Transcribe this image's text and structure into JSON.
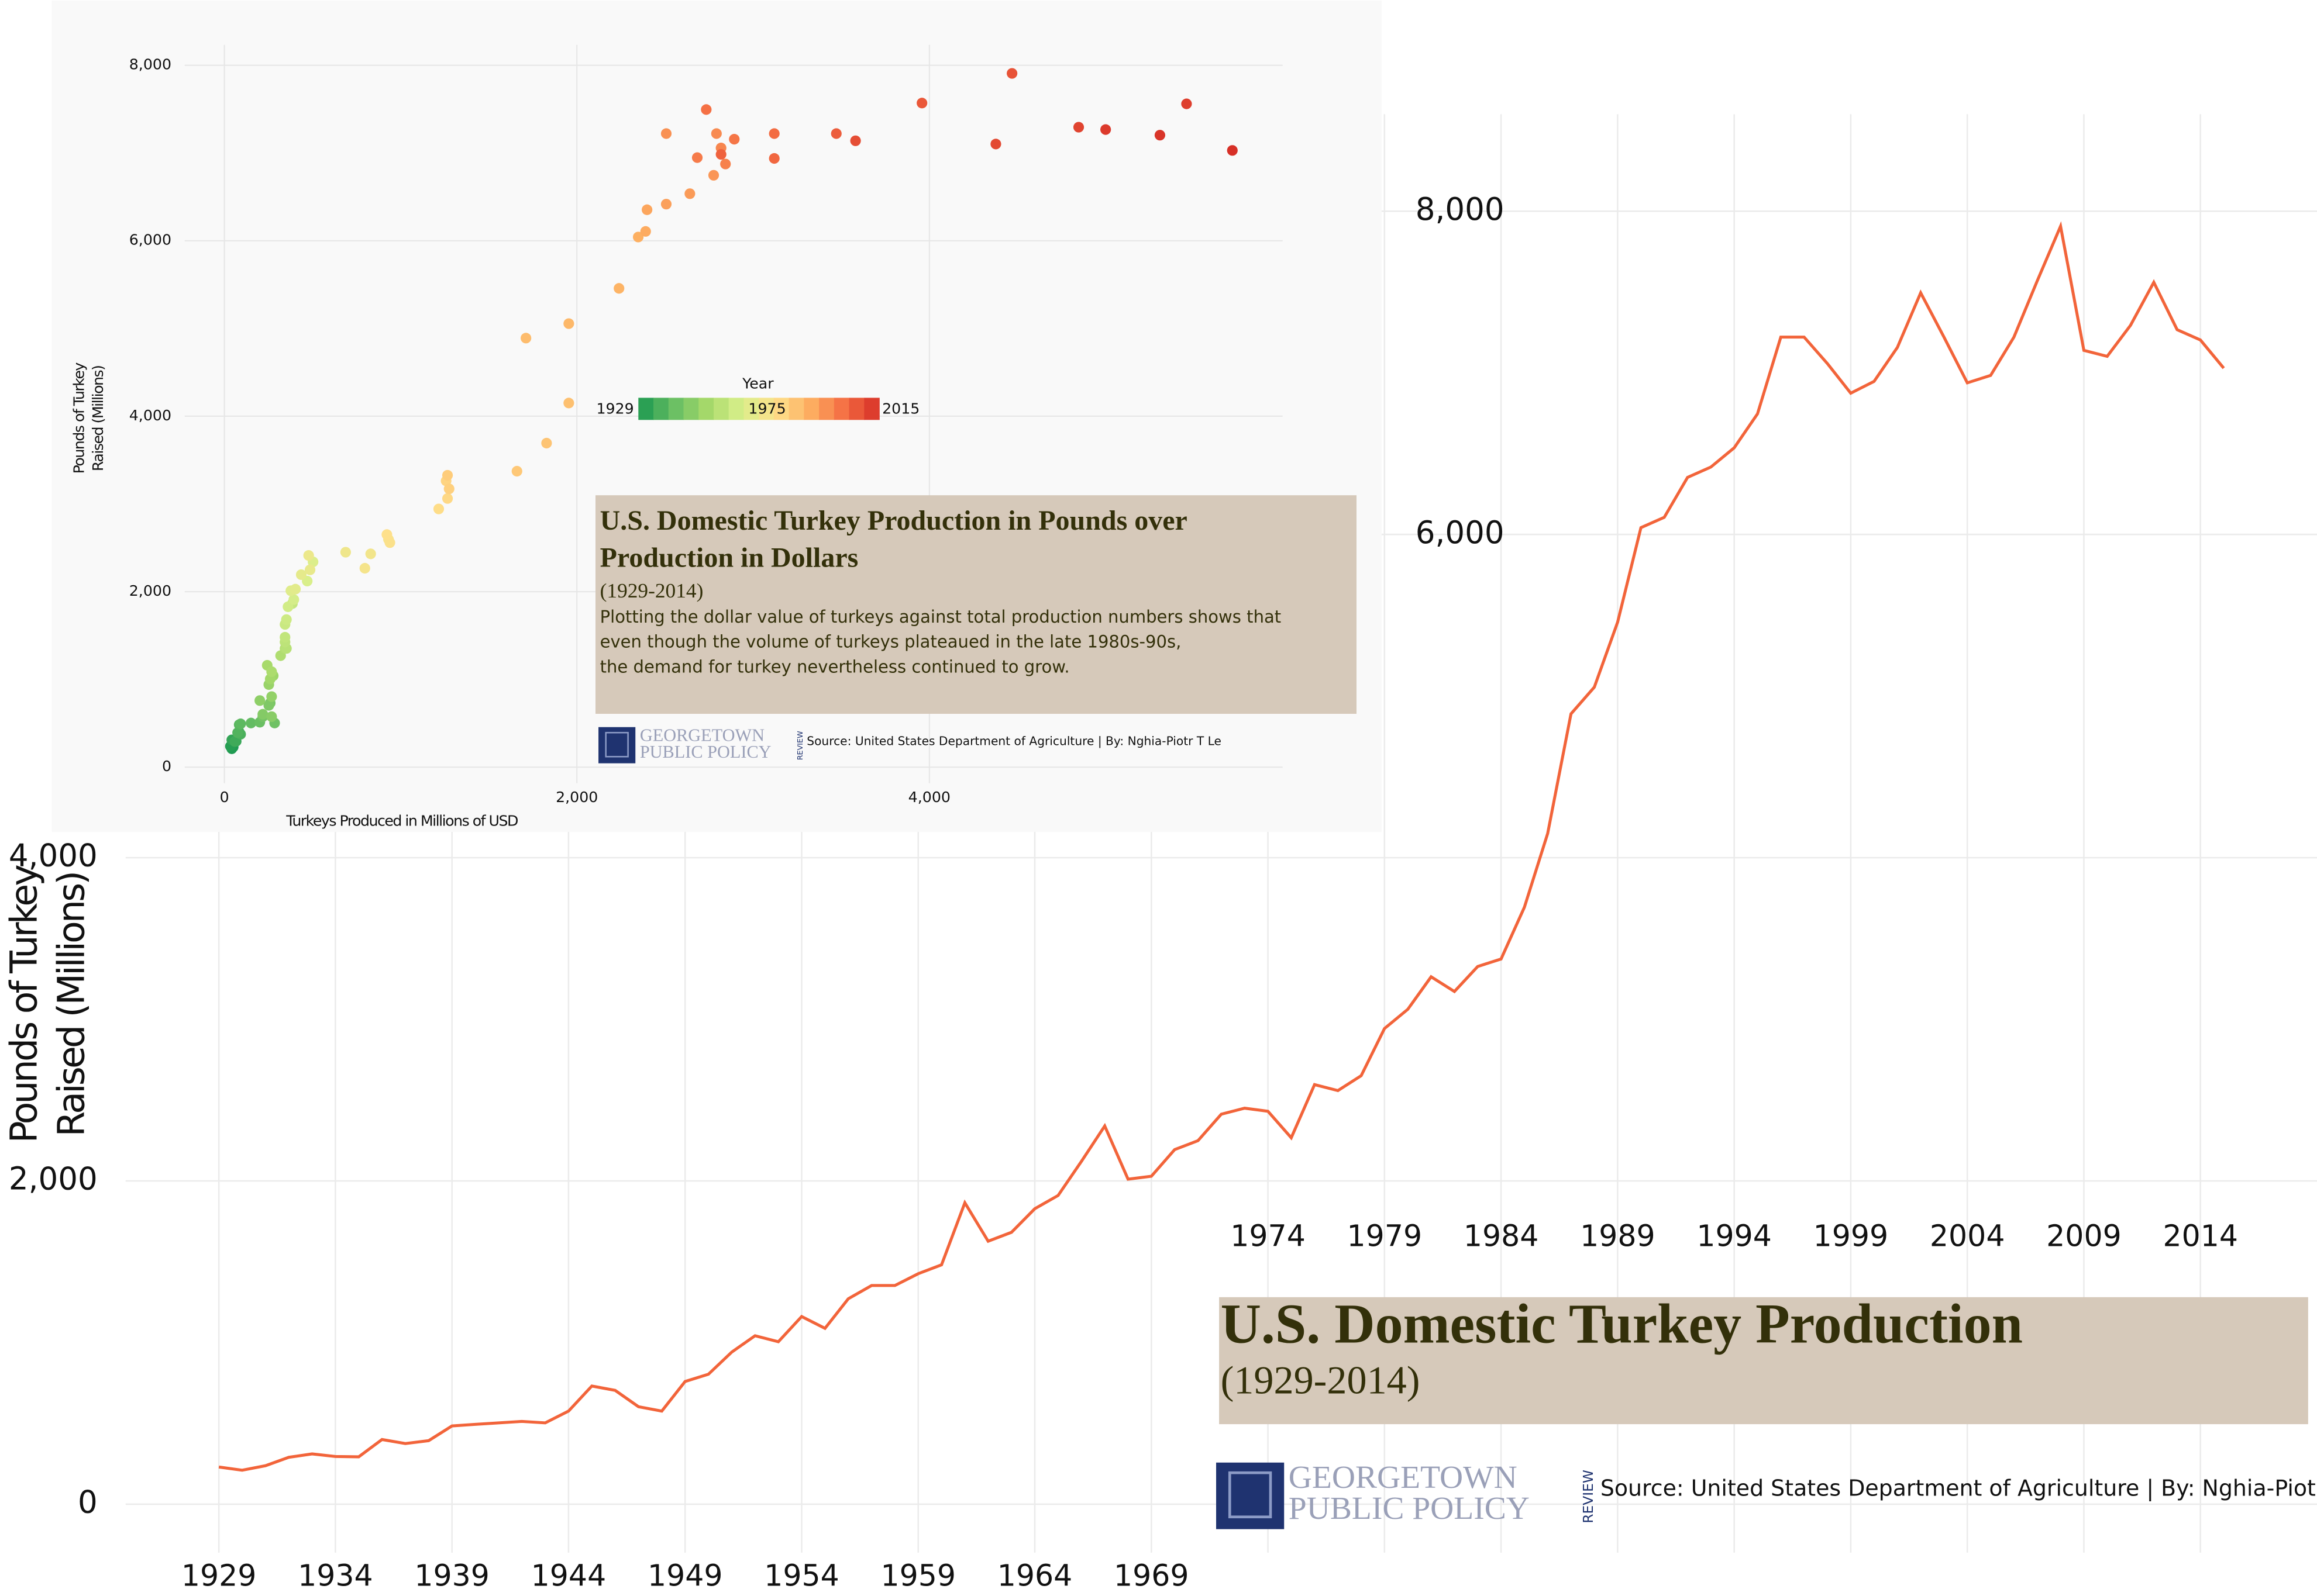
{
  "chart_data": [
    {
      "type": "line",
      "title": "U.S. Domestic Turkey Production",
      "subtitle": "(1929-2014)",
      "ylabel_lines": [
        "Pounds of Turkey",
        "Raised  (Millions)"
      ],
      "x": [
        1929,
        1930,
        1931,
        1932,
        1933,
        1934,
        1935,
        1936,
        1937,
        1938,
        1939,
        1940,
        1941,
        1942,
        1943,
        1944,
        1945,
        1946,
        1947,
        1948,
        1949,
        1950,
        1951,
        1952,
        1953,
        1954,
        1955,
        1956,
        1957,
        1958,
        1959,
        1960,
        1961,
        1962,
        1963,
        1964,
        1965,
        1966,
        1967,
        1968,
        1969,
        1970,
        1971,
        1972,
        1973,
        1974,
        1975,
        1976,
        1977,
        1978,
        1979,
        1980,
        1981,
        1982,
        1983,
        1984,
        1985,
        1986,
        1987,
        1988,
        1989,
        1990,
        1991,
        1992,
        1993,
        1994,
        1995,
        1996,
        1997,
        1998,
        1999,
        2000,
        2001,
        2002,
        2003,
        2004,
        2005,
        2006,
        2007,
        2008,
        2009,
        2010,
        2011,
        2012,
        2013,
        2014,
        2015
      ],
      "values": [
        230,
        210,
        238,
        290,
        311,
        295,
        293,
        400,
        375,
        393,
        484,
        494,
        503,
        512,
        503,
        576,
        731,
        704,
        603,
        576,
        759,
        804,
        941,
        1042,
        1005,
        1161,
        1088,
        1271,
        1353,
        1353,
        1426,
        1481,
        1865,
        1627,
        1682,
        1828,
        1910,
        2121,
        2340,
        2011,
        2029,
        2194,
        2249,
        2413,
        2450,
        2431,
        2267,
        2596,
        2559,
        2651,
        2943,
        3062,
        3263,
        3172,
        3327,
        3373,
        3693,
        4150,
        4890,
        5055,
        5457,
        6042,
        6106,
        6353,
        6417,
        6536,
        6746,
        7221,
        7221,
        7057,
        6874,
        6947,
        7157,
        7495,
        7221,
        6938,
        6984,
        7221,
        7569,
        7907,
        7139,
        7102,
        7294,
        7560,
        7267,
        7203,
        7029
      ],
      "color": "#f2643a",
      "xlim": [
        1925,
        2019
      ],
      "ylim": [
        -300,
        8600
      ],
      "xticks": [
        1929,
        1934,
        1939,
        1944,
        1949,
        1954,
        1959,
        1964,
        1969,
        1974,
        1979,
        1984,
        1989,
        1994,
        1999,
        2004,
        2009,
        2014
      ],
      "yticks": [
        0,
        {
          "value": 2000,
          "label": "2,000"
        },
        {
          "value": 4000,
          "label": "4,000"
        },
        {
          "value": 6000,
          "label": "6,000"
        },
        {
          "value": 8000,
          "label": "8,000"
        }
      ],
      "grid": true,
      "source": "Source: United States Department of Agriculture | By: Nghia-Piotr T Le",
      "logo_lines": [
        "GEORGETOWN",
        "PUBLIC POLICY",
        "REVIEW"
      ]
    },
    {
      "type": "scatter",
      "title_lines": [
        "U.S. Domestic Turkey Production in Pounds over",
        "Production in Dollars"
      ],
      "subtitle": "(1929-2014)",
      "description_lines": [
        "Plotting the dollar value of turkeys against total production numbers shows that",
        "even though the volume of turkeys plateaued in the late 1980s-90s,",
        "the demand for turkey nevertheless continued to grow."
      ],
      "xlabel": "Turkeys Produced in Millions of USD",
      "ylabel_lines": [
        "Pounds of Turkey",
        "Raised  (Millions)"
      ],
      "years": [
        1929,
        1930,
        1931,
        1932,
        1933,
        1934,
        1935,
        1936,
        1937,
        1938,
        1939,
        1940,
        1941,
        1942,
        1943,
        1944,
        1945,
        1946,
        1947,
        1948,
        1949,
        1950,
        1951,
        1952,
        1953,
        1954,
        1955,
        1956,
        1957,
        1958,
        1959,
        1960,
        1961,
        1962,
        1963,
        1964,
        1965,
        1966,
        1967,
        1968,
        1969,
        1970,
        1971,
        1972,
        1973,
        1974,
        1975,
        1976,
        1977,
        1978,
        1979,
        1980,
        1981,
        1982,
        1983,
        1984,
        1985,
        1986,
        1987,
        1988,
        1989,
        1990,
        1991,
        1992,
        1993,
        1994,
        1995,
        1996,
        1997,
        1998,
        1999,
        2000,
        2001,
        2002,
        2003,
        2004,
        2005,
        2006,
        2007,
        2008,
        2009,
        2010,
        2011,
        2012,
        2013,
        2014,
        2015
      ],
      "x": [
        50,
        42,
        34,
        59,
        42,
        67,
        59,
        84,
        92,
        75,
        84,
        92,
        151,
        201,
        285,
        218,
        260,
        252,
        218,
        268,
        201,
        268,
        252,
        277,
        260,
        243,
        268,
        319,
        344,
        352,
        344,
        344,
        386,
        344,
        352,
        361,
        394,
        470,
        503,
        377,
        403,
        436,
        486,
        478,
        688,
        830,
        797,
        931,
        939,
        922,
        1216,
        1266,
        1258,
        1275,
        1266,
        1660,
        1828,
        1954,
        1711,
        1954,
        2239,
        2348,
        2390,
        2398,
        2507,
        2641,
        2776,
        2507,
        2792,
        2818,
        2843,
        2683,
        2893,
        2734,
        3120,
        3120,
        2818,
        3472,
        3958,
        4469,
        3581,
        4377,
        4847,
        5459,
        5000,
        5308,
        5719
      ],
      "y": [
        230,
        210,
        238,
        290,
        311,
        295,
        293,
        400,
        375,
        393,
        484,
        494,
        503,
        512,
        503,
        576,
        731,
        704,
        603,
        576,
        759,
        804,
        941,
        1042,
        1005,
        1161,
        1088,
        1271,
        1353,
        1353,
        1426,
        1481,
        1865,
        1627,
        1682,
        1828,
        1910,
        2121,
        2340,
        2011,
        2029,
        2194,
        2249,
        2413,
        2450,
        2431,
        2267,
        2596,
        2559,
        2651,
        2943,
        3062,
        3263,
        3172,
        3327,
        3373,
        3693,
        4150,
        4890,
        5055,
        5457,
        6042,
        6106,
        6353,
        6417,
        6536,
        6746,
        7221,
        7221,
        7057,
        6874,
        6947,
        7157,
        7495,
        7221,
        6938,
        6984,
        7221,
        7569,
        7907,
        7139,
        7102,
        7294,
        7560,
        7267,
        7203,
        7029
      ],
      "xlim": [
        -200,
        6000
      ],
      "ylim": [
        -200,
        8300
      ],
      "xticks": [
        0,
        {
          "value": 2000,
          "label": "2,000"
        },
        {
          "value": 4000,
          "label": "4,000"
        }
      ],
      "yticks": [
        0,
        {
          "value": 2000,
          "label": "2,000"
        },
        {
          "value": 4000,
          "label": "4,000"
        },
        {
          "value": 6000,
          "label": "6,000"
        },
        {
          "value": 8000,
          "label": "8,000"
        }
      ],
      "grid": true,
      "colorbar": {
        "title": "Year",
        "range": [
          1929,
          2015
        ],
        "ticks": [
          1929,
          1975,
          2015
        ],
        "colors": [
          "#1a9850",
          "#66bd63",
          "#a6d96a",
          "#d9ef8b",
          "#fee08b",
          "#fdae61",
          "#f46d43",
          "#d73027"
        ]
      },
      "source": "Source: United States Department of Agriculture | By: Nghia-Piotr T Le",
      "logo_lines": [
        "GEORGETOWN",
        "PUBLIC POLICY",
        "REVIEW"
      ]
    }
  ]
}
